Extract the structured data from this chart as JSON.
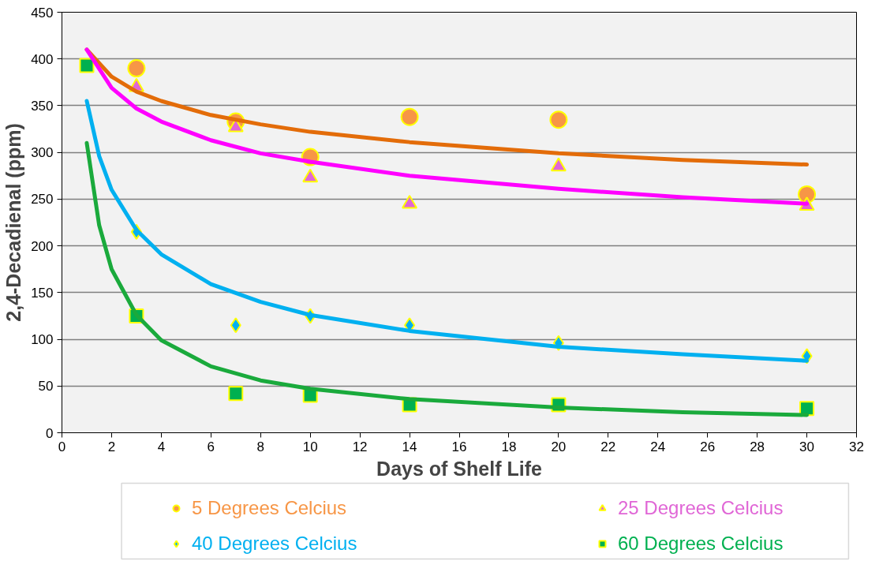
{
  "chart_data": {
    "type": "scatter",
    "xlabel": "Days of Shelf Life",
    "ylabel": "2,4-Decadienal (ppm)",
    "x": [
      1,
      3,
      7,
      10,
      14,
      20,
      30
    ],
    "xlim": [
      0,
      32
    ],
    "xticks": [
      0,
      2,
      4,
      6,
      8,
      10,
      12,
      14,
      16,
      18,
      20,
      22,
      24,
      26,
      28,
      30,
      32
    ],
    "ylim": [
      0,
      450
    ],
    "yticks": [
      0,
      50,
      100,
      150,
      200,
      250,
      300,
      350,
      400,
      450
    ],
    "grid": "y",
    "legend": "bottom",
    "series": [
      {
        "name": "5 Degrees Celcius",
        "color": "#f79646",
        "marker": "circle",
        "values": [
          null,
          390,
          333,
          295,
          338,
          335,
          255
        ]
      },
      {
        "name": "25 Degrees Celcius",
        "color": "#e066d6",
        "marker": "triangle",
        "values": [
          null,
          370,
          327,
          273,
          245,
          285,
          243
        ]
      },
      {
        "name": "40 Degrees Celcius",
        "color": "#00b0f0",
        "marker": "diamond",
        "values": [
          null,
          215,
          115,
          125,
          115,
          96,
          82
        ]
      },
      {
        "name": "60 Degrees Celcius",
        "color": "#00b050",
        "marker": "square",
        "values": [
          393,
          125,
          42,
          40,
          30,
          30,
          26
        ]
      },
      {
        "type": "line",
        "color": "#e36c09",
        "marker": "none",
        "x": [
          1,
          2,
          3,
          4,
          6,
          8,
          10,
          14,
          20,
          25,
          30
        ],
        "values": [
          410,
          381,
          365,
          355,
          340,
          330,
          322,
          311,
          299,
          292,
          287
        ]
      },
      {
        "type": "line",
        "color": "#ff00ff",
        "marker": "none",
        "x": [
          1,
          2,
          3,
          4,
          6,
          8,
          10,
          14,
          20,
          25,
          30
        ],
        "values": [
          410,
          369,
          347,
          333,
          313,
          299,
          290,
          275,
          261,
          252,
          245
        ]
      },
      {
        "type": "line",
        "color": "#00b0f0",
        "marker": "none",
        "x": [
          1,
          1.5,
          2,
          3,
          4,
          6,
          8,
          10,
          14,
          20,
          25,
          30
        ],
        "values": [
          355,
          296,
          260,
          217,
          191,
          159,
          140,
          126,
          109,
          92,
          84,
          77
        ]
      },
      {
        "type": "line",
        "color": "#1aaa3c",
        "marker": "none",
        "x": [
          1,
          1.5,
          2,
          3,
          4,
          6,
          8,
          10,
          14,
          20,
          25,
          30
        ],
        "values": [
          310,
          222,
          175,
          126,
          99,
          71,
          56,
          47,
          36,
          27,
          22,
          19
        ]
      }
    ]
  }
}
